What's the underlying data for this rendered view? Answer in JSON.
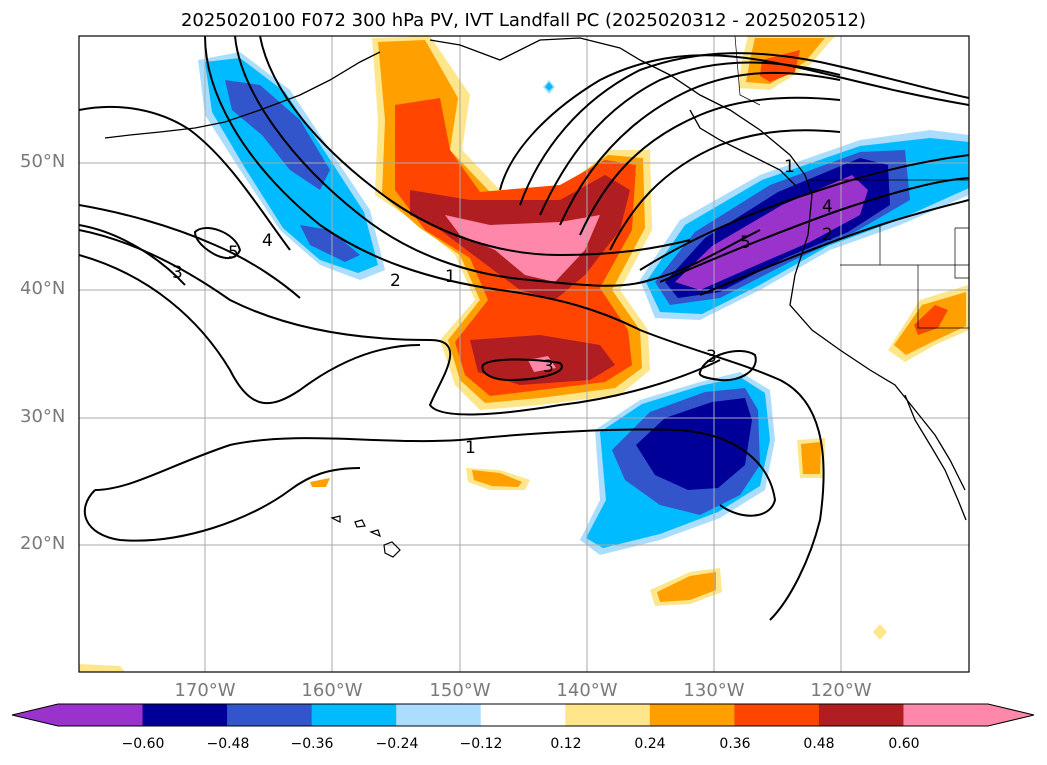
{
  "title": "2025020100 F072 300 hPa PV, IVT Landfall PC (2025020312 - 2025020512)",
  "lat_labels": [
    "50°N",
    "40°N",
    "30°N",
    "20°N"
  ],
  "lon_labels": [
    "170°W",
    "160°W",
    "150°W",
    "140°W",
    "130°W",
    "120°W"
  ],
  "colorbar": {
    "tick_labels": [
      "−0.60",
      "−0.48",
      "−0.36",
      "−0.24",
      "−0.12",
      "0.12",
      "0.24",
      "0.36",
      "0.48",
      "0.60"
    ],
    "colors": [
      "#9933cc",
      "#000099",
      "#3355cc",
      "#00bbff",
      "#aaddff",
      "#ffffff",
      "#ffe68a",
      "#ff9f00",
      "#ff4500",
      "#b01e22",
      "#ff88aa"
    ],
    "extend": "both"
  },
  "contour_labels": [
    "5",
    "4",
    "3",
    "2",
    "1",
    "1",
    "3",
    "3",
    "1",
    "5",
    "4",
    "2"
  ]
}
